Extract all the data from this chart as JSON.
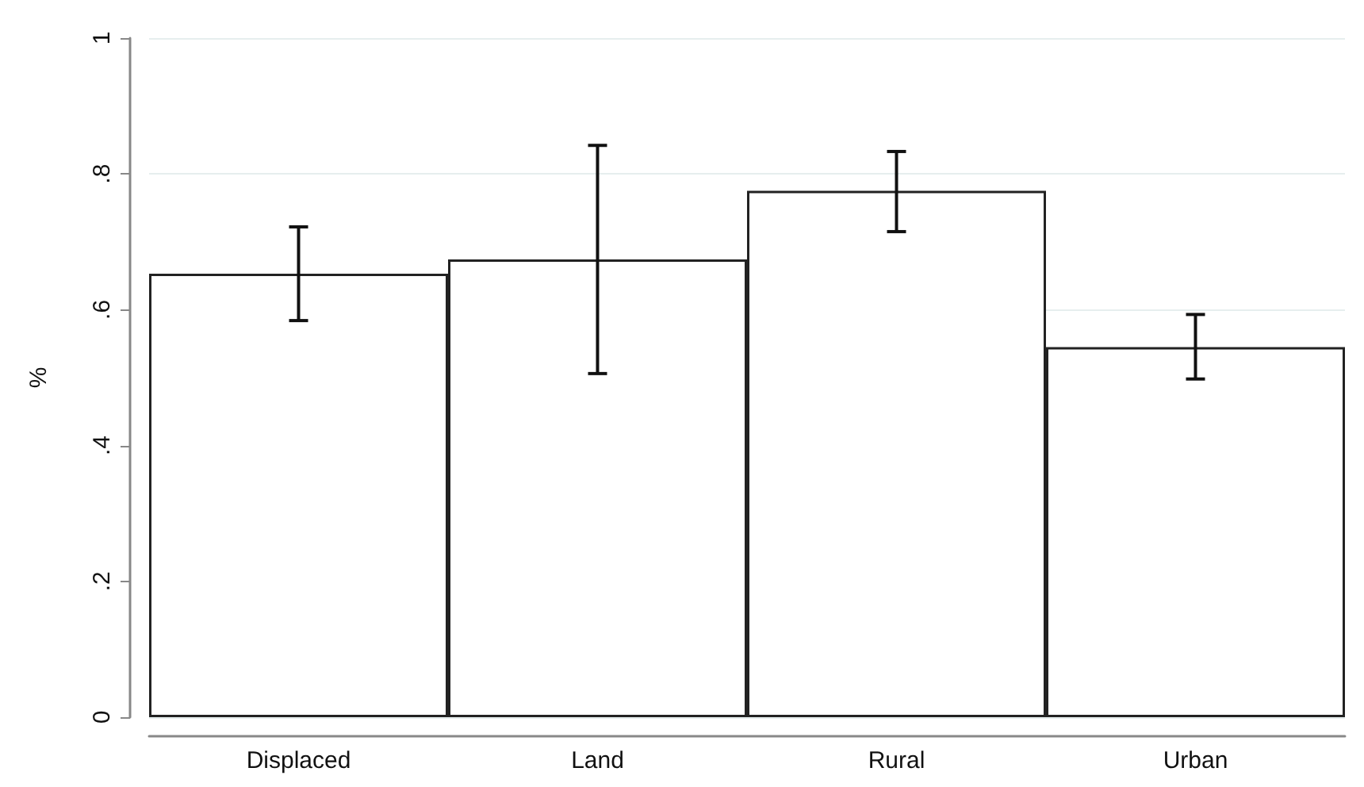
{
  "chart_data": {
    "type": "bar",
    "ylabel": "%",
    "categories": [
      "Displaced",
      "Land",
      "Rural",
      "Urban"
    ],
    "values": [
      0.653,
      0.674,
      0.775,
      0.545
    ],
    "errors": [
      [
        0.584,
        0.722
      ],
      [
        0.506,
        0.842
      ],
      [
        0.715,
        0.833
      ],
      [
        0.498,
        0.593
      ]
    ],
    "color": "#ffffff",
    "ylim": [
      0,
      1
    ],
    "yticks": [
      {
        "value": 0,
        "label": "0"
      },
      {
        "value": 0.2,
        "label": ".2"
      },
      {
        "value": 0.4,
        "label": ".4"
      },
      {
        "value": 0.6,
        "label": ".6"
      },
      {
        "value": 0.8,
        "label": ".8"
      },
      {
        "value": 1,
        "label": "1"
      }
    ],
    "grid": "y"
  }
}
